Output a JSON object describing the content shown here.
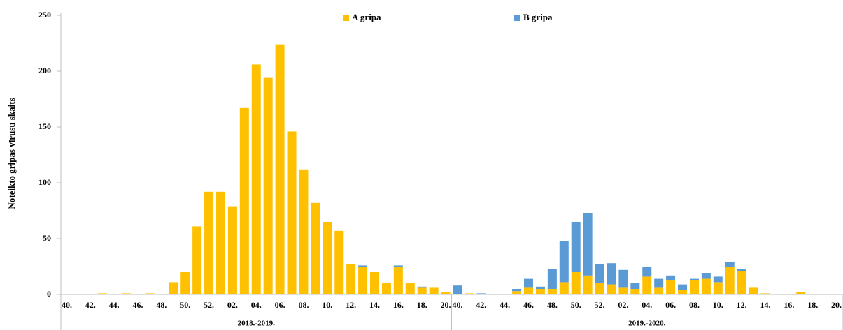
{
  "chart_data": {
    "type": "stacked-bar",
    "ylabel": "Noteikto gripas vīrusu skaits",
    "groups": [
      "2018.-2019.",
      "2019.-2020."
    ],
    "categories": [
      "40.",
      null,
      "42.",
      null,
      "44.",
      null,
      "46.",
      null,
      "48.",
      null,
      "50.",
      null,
      "52.",
      null,
      "02.",
      null,
      "04.",
      null,
      "06.",
      null,
      "08.",
      null,
      "10.",
      null,
      "12.",
      null,
      "14.",
      null,
      "16.",
      null,
      "18.",
      null,
      "20.",
      "40.",
      null,
      "42.",
      null,
      "44.",
      null,
      "46.",
      null,
      "48.",
      null,
      "50.",
      null,
      "52.",
      null,
      "02.",
      null,
      "04.",
      null,
      "06.",
      null,
      "08.",
      null,
      "10.",
      null,
      "12.",
      null,
      "14.",
      null,
      "16.",
      null,
      "18.",
      null,
      "20."
    ],
    "series": [
      {
        "name": "A gripa",
        "color": "#FFC000",
        "values": [
          0,
          0,
          0,
          1,
          0,
          1,
          0,
          1,
          0,
          11,
          20,
          61,
          92,
          92,
          79,
          167,
          206,
          194,
          224,
          146,
          112,
          82,
          65,
          57,
          27,
          25,
          20,
          10,
          25,
          10,
          6,
          6,
          2,
          0,
          1,
          0,
          0,
          0,
          3,
          6,
          5,
          5,
          11,
          20,
          17,
          10,
          9,
          6,
          5,
          16,
          6,
          13,
          4,
          13,
          14,
          11,
          25,
          21,
          6,
          1,
          0,
          0,
          2,
          0,
          0,
          0
        ]
      },
      {
        "name": "B gripa",
        "color": "#5B9BD5",
        "values": [
          0,
          0,
          0,
          0,
          0,
          0,
          0,
          0,
          0,
          0,
          0,
          0,
          0,
          0,
          0,
          0,
          0,
          0,
          0,
          0,
          0,
          0,
          0,
          0,
          0,
          1,
          0,
          0,
          1,
          0,
          1,
          0,
          0,
          8,
          0,
          1,
          0,
          0,
          2,
          8,
          2,
          18,
          37,
          45,
          56,
          17,
          19,
          16,
          5,
          9,
          8,
          4,
          5,
          1,
          5,
          5,
          4,
          2,
          0,
          0,
          0,
          0,
          0,
          0,
          0,
          0
        ]
      }
    ],
    "ylim": [
      0,
      250
    ],
    "yticks": [
      0,
      50,
      100,
      150,
      200,
      250
    ],
    "grid": false
  }
}
